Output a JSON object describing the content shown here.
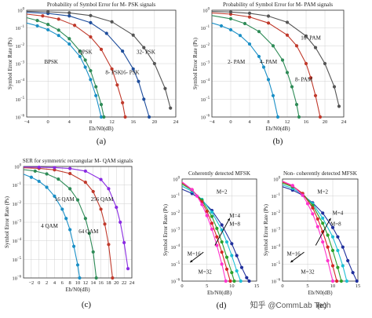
{
  "figure": {
    "watermark": "知乎 @CommLab Tech"
  },
  "chart_data": [
    {
      "id": "a",
      "type": "line",
      "caption": "(a)",
      "title": "Probability of Symbol Error for M- PSK signals",
      "xlabel": "Eb/N0(dB)",
      "ylabel": "Symbol Error Rate (Ps)",
      "xlim": [
        -4,
        24
      ],
      "ylim_log": [
        -6,
        0
      ],
      "xticks": [
        -4,
        0,
        4,
        8,
        12,
        16,
        20,
        24
      ],
      "yticks": [
        0,
        -1,
        -2,
        -3,
        -4,
        -5,
        -6
      ],
      "grid": true,
      "series": [
        {
          "label": "BPSK",
          "color": "#1a8fc6",
          "x": [
            -4,
            -2,
            0,
            2,
            4,
            6,
            7,
            8,
            9,
            10
          ],
          "y": [
            -0.72,
            -0.88,
            -1.1,
            -1.42,
            -1.9,
            -2.6,
            -3.2,
            -3.9,
            -4.8,
            -6.0
          ]
        },
        {
          "label": "QPSK",
          "color": "#2e8b57",
          "x": [
            -4,
            -2,
            0,
            2,
            4,
            6,
            7,
            8,
            9,
            10,
            10.5
          ],
          "y": [
            -0.42,
            -0.58,
            -0.8,
            -1.12,
            -1.6,
            -2.3,
            -2.8,
            -3.4,
            -4.3,
            -5.3,
            -6.0
          ]
        },
        {
          "label": "8- PSK",
          "color": "#c0392b",
          "x": [
            -4,
            -1,
            2,
            5,
            8,
            10,
            12,
            13,
            14,
            14.5
          ],
          "y": [
            -0.22,
            -0.32,
            -0.5,
            -0.85,
            -1.5,
            -2.2,
            -3.3,
            -4.2,
            -5.2,
            -6.0
          ]
        },
        {
          "label": "16- PSK",
          "color": "#1f4e9c",
          "x": [
            -4,
            0,
            4,
            8,
            11,
            14,
            16,
            17,
            18,
            19
          ],
          "y": [
            -0.12,
            -0.18,
            -0.32,
            -0.7,
            -1.3,
            -2.3,
            -3.3,
            -4.0,
            -5.0,
            -6.0
          ]
        },
        {
          "label": "32- PSK",
          "color": "#555555",
          "x": [
            -4,
            0,
            4,
            8,
            12,
            16,
            18,
            20,
            22,
            23
          ],
          "y": [
            -0.06,
            -0.09,
            -0.15,
            -0.3,
            -0.65,
            -1.4,
            -2.1,
            -3.0,
            -4.4,
            -5.5
          ]
        }
      ],
      "labels": [
        {
          "text": "BPSK",
          "x": 0.6,
          "y": -3.0
        },
        {
          "text": "QPSK",
          "x": 7.0,
          "y": -2.45
        },
        {
          "text": "8- PSK",
          "x": 12.3,
          "y": -3.6
        },
        {
          "text": "16- PSK",
          "x": 15.4,
          "y": -3.6
        },
        {
          "text": "32- PSK",
          "x": 18.4,
          "y": -2.45
        }
      ]
    },
    {
      "id": "b",
      "type": "line",
      "caption": "(b)",
      "title": "Probability of Symbol Error for M- PAM signals",
      "xlabel": "Eb/N0(dB)",
      "ylabel": "Symbol Error Rate (Ps)",
      "xlim": [
        -4,
        24
      ],
      "ylim_log": [
        -6,
        0
      ],
      "xticks": [
        -4,
        0,
        4,
        8,
        12,
        16,
        20,
        24
      ],
      "yticks": [
        0,
        -1,
        -2,
        -3,
        -4,
        -5,
        -6
      ],
      "grid": true,
      "series": [
        {
          "label": "2- PAM",
          "color": "#1a8fc6",
          "x": [
            -4,
            -2,
            0,
            2,
            4,
            6,
            7,
            8,
            9,
            10
          ],
          "y": [
            -0.72,
            -0.88,
            -1.1,
            -1.42,
            -1.9,
            -2.6,
            -3.2,
            -3.9,
            -4.8,
            -6.0
          ]
        },
        {
          "label": "4- PAM",
          "color": "#2e8b57",
          "x": [
            -4,
            0,
            3,
            6,
            9,
            11,
            12,
            13,
            14,
            14.5
          ],
          "y": [
            -0.3,
            -0.48,
            -0.75,
            -1.2,
            -2.0,
            -2.8,
            -3.5,
            -4.3,
            -5.3,
            -6.0
          ]
        },
        {
          "label": "8- PAM",
          "color": "#c0392b",
          "x": [
            -4,
            0,
            4,
            8,
            12,
            14,
            16,
            17,
            18,
            19
          ],
          "y": [
            -0.15,
            -0.22,
            -0.38,
            -0.72,
            -1.4,
            -2.0,
            -3.0,
            -3.8,
            -4.8,
            -6.0
          ]
        },
        {
          "label": "16- PAM",
          "color": "#555555",
          "x": [
            -4,
            0,
            4,
            8,
            12,
            16,
            18,
            20,
            22,
            23
          ],
          "y": [
            -0.07,
            -0.1,
            -0.17,
            -0.33,
            -0.68,
            -1.45,
            -2.1,
            -3.0,
            -4.3,
            -5.4
          ]
        }
      ],
      "labels": [
        {
          "text": "2- PAM",
          "x": 1.2,
          "y": -3.0
        },
        {
          "text": "4- PAM",
          "x": 8.0,
          "y": -3.0
        },
        {
          "text": "8- PAM",
          "x": 15.5,
          "y": -4.0
        },
        {
          "text": "16- PAM",
          "x": 17.0,
          "y": -1.65
        }
      ]
    },
    {
      "id": "c",
      "type": "line",
      "caption": "(c)",
      "title": "SER for symmetric rectangular M- QAM signals",
      "xlabel": "Eb/N0(dB)",
      "ylabel": "Symbol Error Rate (Ps)",
      "xlim": [
        -4,
        24
      ],
      "ylim_log": [
        -6,
        0
      ],
      "xticks": [
        -2,
        0,
        2,
        4,
        6,
        8,
        10,
        12,
        14,
        16,
        18,
        20,
        22,
        24
      ],
      "yticks": [
        0,
        -1,
        -2,
        -3,
        -4,
        -5,
        -6
      ],
      "grid": true,
      "series": [
        {
          "label": "4 QAM",
          "color": "#1a8fc6",
          "x": [
            -4,
            -2,
            0,
            2,
            4,
            6,
            7,
            8,
            9,
            10,
            10.5
          ],
          "y": [
            -0.42,
            -0.58,
            -0.8,
            -1.12,
            -1.6,
            -2.3,
            -2.8,
            -3.4,
            -4.3,
            -5.3,
            -6.0
          ]
        },
        {
          "label": "16 QAM",
          "color": "#2e8b57",
          "x": [
            -4,
            -1,
            2,
            5,
            8,
            10,
            12,
            13,
            14,
            14.8
          ],
          "y": [
            -0.17,
            -0.25,
            -0.4,
            -0.68,
            -1.2,
            -1.8,
            -2.8,
            -3.6,
            -4.6,
            -6.0
          ]
        },
        {
          "label": "64 QAM",
          "color": "#c0392b",
          "x": [
            -4,
            0,
            4,
            8,
            12,
            14,
            16,
            17,
            18,
            19
          ],
          "y": [
            -0.07,
            -0.1,
            -0.18,
            -0.38,
            -0.85,
            -1.35,
            -2.3,
            -3.1,
            -4.2,
            -6.0
          ]
        },
        {
          "label": "256 QAM",
          "color": "#8a2be2",
          "x": [
            -4,
            0,
            4,
            8,
            12,
            16,
            18,
            20,
            21,
            22,
            23
          ],
          "y": [
            -0.03,
            -0.04,
            -0.06,
            -0.11,
            -0.25,
            -0.7,
            -1.2,
            -2.2,
            -3.0,
            -4.1,
            -5.5
          ]
        }
      ],
      "labels": [
        {
          "text": "4 QAM",
          "x": 2.7,
          "y": -3.3
        },
        {
          "text": "16 QAM",
          "x": 6.6,
          "y": -1.85
        },
        {
          "text": "64 QAM",
          "x": 12.8,
          "y": -3.6
        },
        {
          "text": "256 QAM",
          "x": 16.3,
          "y": -1.85
        }
      ]
    },
    {
      "id": "d",
      "type": "line",
      "caption": "(d)",
      "title": "Coherently detected MFSK",
      "xlabel": "Eb/N0(dB)",
      "ylabel": "Symbol Error Rate (Ps)",
      "xlim": [
        0,
        15
      ],
      "ylim_log": [
        -6,
        0
      ],
      "xticks": [
        0,
        5,
        10,
        15
      ],
      "yticks": [
        0,
        -1,
        -2,
        -3,
        -4,
        -5,
        -6
      ],
      "grid": true,
      "series": [
        {
          "label": "M=2",
          "color": "#1f2f9c",
          "x": [
            0,
            2,
            4,
            6,
            8,
            10,
            11,
            12,
            13,
            13.5
          ],
          "y": [
            -0.6,
            -0.85,
            -1.25,
            -1.85,
            -2.7,
            -3.8,
            -4.5,
            -5.2,
            -5.8,
            -6.0
          ]
        },
        {
          "label": "M=4",
          "color": "#1bbfd4",
          "x": [
            0,
            2,
            4,
            6,
            8,
            9,
            10,
            11,
            11.8
          ],
          "y": [
            -0.42,
            -0.72,
            -1.2,
            -1.95,
            -3.0,
            -3.7,
            -4.5,
            -5.4,
            -6.0
          ]
        },
        {
          "label": "M=8",
          "color": "#2ca02c",
          "x": [
            0,
            2,
            4,
            6,
            7,
            8,
            9,
            10,
            10.5
          ],
          "y": [
            -0.3,
            -0.65,
            -1.25,
            -2.2,
            -2.9,
            -3.7,
            -4.6,
            -5.5,
            -6.0
          ]
        },
        {
          "label": "M=16",
          "color": "#d62728",
          "x": [
            0,
            2,
            4,
            5,
            6,
            7,
            8,
            9,
            9.7
          ],
          "y": [
            -0.22,
            -0.62,
            -1.35,
            -1.9,
            -2.6,
            -3.4,
            -4.3,
            -5.3,
            -6.0
          ]
        },
        {
          "label": "M=32",
          "color": "#ff33cc",
          "x": [
            0,
            2,
            3,
            4,
            5,
            6,
            7,
            8,
            8.8
          ],
          "y": [
            -0.17,
            -0.62,
            -1.0,
            -1.5,
            -2.15,
            -2.95,
            -3.9,
            -5.0,
            -6.0
          ]
        }
      ],
      "labels": [
        {
          "text": "M=2",
          "x": 8.0,
          "y": -0.85
        },
        {
          "text": "M=4",
          "x": 10.6,
          "y": -2.25
        },
        {
          "text": "M=8",
          "x": 10.6,
          "y": -2.75
        },
        {
          "text": "M=16",
          "x": 2.4,
          "y": -4.5
        },
        {
          "text": "M=32",
          "x": 4.6,
          "y": -5.55
        }
      ]
    },
    {
      "id": "e",
      "type": "line",
      "caption": "(e)",
      "title": "Non- coherently detected MFSK",
      "xlabel": "Eb/N0(dB)",
      "ylabel": "Symbol Error Rate (Ps)",
      "xlim": [
        0,
        15
      ],
      "ylim_log": [
        -6,
        0
      ],
      "xticks": [
        0,
        5,
        10,
        15
      ],
      "yticks": [
        0,
        -1,
        -2,
        -3,
        -4,
        -5,
        -6
      ],
      "grid": true,
      "series": [
        {
          "label": "M=2",
          "color": "#1f2f9c",
          "x": [
            0,
            2,
            4,
            6,
            8,
            10,
            11,
            12,
            13,
            14,
            14.8
          ],
          "y": [
            -0.45,
            -0.65,
            -0.95,
            -1.4,
            -2.0,
            -2.85,
            -3.4,
            -4.0,
            -4.8,
            -5.5,
            -6.0
          ]
        },
        {
          "label": "M=4",
          "color": "#1bbfd4",
          "x": [
            0,
            2,
            4,
            6,
            8,
            10,
            11,
            12,
            12.8
          ],
          "y": [
            -0.35,
            -0.55,
            -0.9,
            -1.45,
            -2.3,
            -3.4,
            -4.2,
            -5.1,
            -6.0
          ]
        },
        {
          "label": "M=8",
          "color": "#2ca02c",
          "x": [
            0,
            2,
            4,
            6,
            8,
            9,
            10,
            11,
            11.7
          ],
          "y": [
            -0.25,
            -0.45,
            -0.85,
            -1.55,
            -2.6,
            -3.3,
            -4.2,
            -5.2,
            -6.0
          ]
        },
        {
          "label": "M=16",
          "color": "#d62728",
          "x": [
            0,
            2,
            4,
            6,
            7,
            8,
            9,
            10,
            10.8
          ],
          "y": [
            -0.18,
            -0.4,
            -0.85,
            -1.7,
            -2.35,
            -3.1,
            -4.0,
            -5.1,
            -6.0
          ]
        },
        {
          "label": "M=32",
          "color": "#ff33cc",
          "x": [
            0,
            2,
            4,
            5,
            6,
            7,
            8,
            9,
            10
          ],
          "y": [
            -0.13,
            -0.38,
            -0.95,
            -1.45,
            -2.05,
            -2.8,
            -3.7,
            -4.8,
            -6.0
          ]
        }
      ],
      "labels": [
        {
          "text": "M=2",
          "x": 8.0,
          "y": -0.85
        },
        {
          "text": "M=4",
          "x": 11.0,
          "y": -2.1
        },
        {
          "text": "M=8",
          "x": 10.6,
          "y": -2.75
        },
        {
          "text": "M=16",
          "x": 2.2,
          "y": -4.5
        },
        {
          "text": "M=32",
          "x": 5.0,
          "y": -5.55
        }
      ]
    }
  ]
}
